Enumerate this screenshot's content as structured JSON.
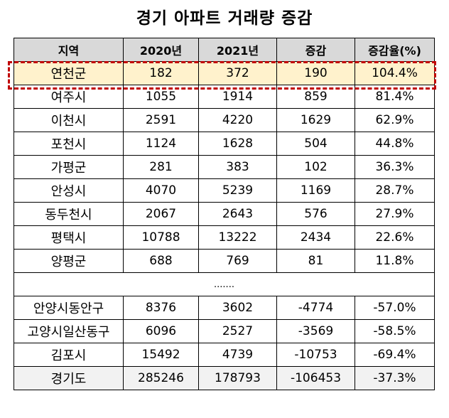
{
  "title": "경기 아파트 거래량 증감",
  "headers": [
    "지역",
    "2020년",
    "2021년",
    "증감",
    "증감율(%)"
  ],
  "rows": [
    [
      "연천군",
      "182",
      "372",
      "190",
      "104.4%"
    ],
    [
      "여주시",
      "1055",
      "1914",
      "859",
      "81.4%"
    ],
    [
      "이천시",
      "2591",
      "4220",
      "1629",
      "62.9%"
    ],
    [
      "포천시",
      "1124",
      "1628",
      "504",
      "44.8%"
    ],
    [
      "가평군",
      "281",
      "383",
      "102",
      "36.3%"
    ],
    [
      "안성시",
      "4070",
      "5239",
      "1169",
      "28.7%"
    ],
    [
      "동두천시",
      "2067",
      "2643",
      "576",
      "27.9%"
    ],
    [
      "평택시",
      "10788",
      "13222",
      "2434",
      "22.6%"
    ],
    [
      "양평군",
      "688",
      "769",
      "81",
      "11.8%"
    ]
  ],
  "ellipsis": ".......",
  "rows_bottom": [
    [
      "안양시동안구",
      "8376",
      "3602",
      "-4774",
      "-57.0%"
    ],
    [
      "고양시일산동구",
      "6096",
      "2527",
      "-3569",
      "-58.5%"
    ],
    [
      "김포시",
      "15492",
      "4739",
      "-10753",
      "-69.4%"
    ]
  ],
  "total": [
    "경기도",
    "285246",
    "178793",
    "-106453",
    "-37.3%"
  ],
  "colors": {
    "header_bg": "#d9d9d9",
    "highlight_bg": "#fff2cc",
    "highlight_border": "#c00000",
    "total_bg": "#f2f2f2"
  }
}
